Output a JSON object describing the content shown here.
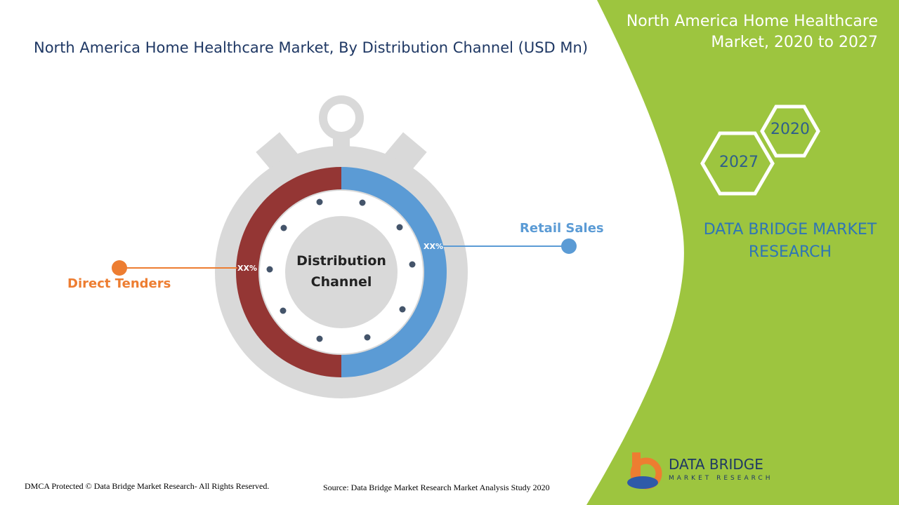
{
  "header": {
    "title": "North America Home Healthcare Market, By Distribution Channel (USD Mn)"
  },
  "side_panel": {
    "title": "North America Home Healthcare Market, 2020 to 2027",
    "years": [
      "2020",
      "2027"
    ],
    "brand": "DATA BRIDGE MARKET RESEARCH"
  },
  "diagram": {
    "center": "Distribution Channel",
    "segments": [
      {
        "label": "Retail Sales",
        "share": "XX%"
      },
      {
        "label": "Direct Tenders",
        "share": "XX%"
      }
    ]
  },
  "logo": {
    "name": "DATA BRIDGE",
    "tagline": "MARKET RESEARCH"
  },
  "footer": {
    "copyright": "DMCA Protected © Data Bridge Market Research- All Rights Reserved.",
    "source": "Source: Data Bridge Market Research Market Analysis Study 2020"
  }
}
